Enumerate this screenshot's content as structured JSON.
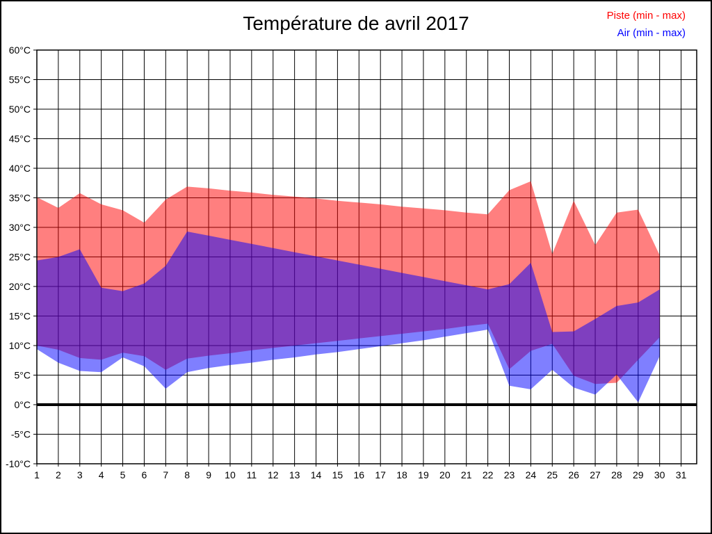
{
  "page": {
    "background": "#FFFFFF",
    "frame_color": "#000000"
  },
  "chart_data": {
    "type": "area",
    "title": "Température de avril 2017",
    "xlabel": "",
    "ylabel": "",
    "ylim": [
      -10,
      60
    ],
    "xlim": [
      1,
      31
    ],
    "grid": true,
    "grid_color": "#000000",
    "zero_line": true,
    "zero_line_color": "#000000",
    "legend_position": "top-right",
    "x": [
      1,
      2,
      3,
      4,
      5,
      6,
      7,
      8,
      9,
      10,
      11,
      12,
      13,
      14,
      15,
      16,
      17,
      18,
      19,
      20,
      21,
      22,
      23,
      24,
      25,
      26,
      27,
      28,
      29,
      30
    ],
    "x_axis_ticks": [
      {
        "value": 1,
        "label": "1"
      },
      {
        "value": 2,
        "label": "2"
      },
      {
        "value": 3,
        "label": "3"
      },
      {
        "value": 4,
        "label": "4"
      },
      {
        "value": 5,
        "label": "5"
      },
      {
        "value": 6,
        "label": "6"
      },
      {
        "value": 7,
        "label": "7"
      },
      {
        "value": 8,
        "label": "8"
      },
      {
        "value": 9,
        "label": "9"
      },
      {
        "value": 10,
        "label": "10"
      },
      {
        "value": 11,
        "label": "11"
      },
      {
        "value": 12,
        "label": "12"
      },
      {
        "value": 13,
        "label": "13"
      },
      {
        "value": 14,
        "label": "14"
      },
      {
        "value": 15,
        "label": "15"
      },
      {
        "value": 16,
        "label": "16"
      },
      {
        "value": 17,
        "label": "17"
      },
      {
        "value": 18,
        "label": "18"
      },
      {
        "value": 19,
        "label": "19"
      },
      {
        "value": 20,
        "label": "20"
      },
      {
        "value": 21,
        "label": "21"
      },
      {
        "value": 22,
        "label": "22"
      },
      {
        "value": 23,
        "label": "23"
      },
      {
        "value": 24,
        "label": "24"
      },
      {
        "value": 25,
        "label": "25"
      },
      {
        "value": 26,
        "label": "26"
      },
      {
        "value": 27,
        "label": "27"
      },
      {
        "value": 28,
        "label": "28"
      },
      {
        "value": 29,
        "label": "29"
      },
      {
        "value": 30,
        "label": "30"
      },
      {
        "value": 31,
        "label": "31"
      }
    ],
    "y_axis_ticks": [
      {
        "value": 60,
        "label": "60°C"
      },
      {
        "value": 55,
        "label": "55°C"
      },
      {
        "value": 50,
        "label": "50°C"
      },
      {
        "value": 45,
        "label": "45°C"
      },
      {
        "value": 40,
        "label": "40°C"
      },
      {
        "value": 35,
        "label": "35°C"
      },
      {
        "value": 30,
        "label": "30°C"
      },
      {
        "value": 25,
        "label": "25°C"
      },
      {
        "value": 20,
        "label": "20°C"
      },
      {
        "value": 15,
        "label": "15°C"
      },
      {
        "value": 10,
        "label": "10°C"
      },
      {
        "value": 5,
        "label": "5°C"
      },
      {
        "value": 0,
        "label": "0°C"
      },
      {
        "value": -5,
        "label": "-5°C"
      },
      {
        "value": -10,
        "label": "-10°C"
      }
    ],
    "series": [
      {
        "name": "Piste (min - max)",
        "legend_color": "#FF0000",
        "fill": "rgba(255,0,0,0.5)",
        "max": [
          35.1,
          33.3,
          35.8,
          33.9,
          32.9,
          30.8,
          34.7,
          36.9,
          36.6,
          36.2,
          35.9,
          35.5,
          35.2,
          34.9,
          34.5,
          34.2,
          33.9,
          33.5,
          33.2,
          32.9,
          32.5,
          32.2,
          36.3,
          37.8,
          25.5,
          34.5,
          27.0,
          32.5,
          33.0,
          25.3
        ],
        "min": [
          10.0,
          9.3,
          7.9,
          7.6,
          8.8,
          8.2,
          5.9,
          7.8,
          8.3,
          8.7,
          9.2,
          9.6,
          10.0,
          10.4,
          10.8,
          11.2,
          11.6,
          12.0,
          12.4,
          12.8,
          13.3,
          13.7,
          6.0,
          9.1,
          10.3,
          4.9,
          3.5,
          3.7,
          7.6,
          11.4
        ]
      },
      {
        "name": "Air (min - max)",
        "legend_color": "#0000FF",
        "fill": "rgba(0,0,255,0.5)",
        "max": [
          24.4,
          25.0,
          26.3,
          19.8,
          19.2,
          20.5,
          23.5,
          29.3,
          28.6,
          27.9,
          27.2,
          26.5,
          25.8,
          25.1,
          24.4,
          23.7,
          23.0,
          22.3,
          21.6,
          20.9,
          20.2,
          19.5,
          20.4,
          24.0,
          12.3,
          12.4,
          14.5,
          16.7,
          17.3,
          19.5
        ],
        "min": [
          9.4,
          7.1,
          5.7,
          5.5,
          8.0,
          6.5,
          2.7,
          5.5,
          6.2,
          6.7,
          7.1,
          7.6,
          8.0,
          8.5,
          8.9,
          9.4,
          9.9,
          10.4,
          10.9,
          11.5,
          12.1,
          12.7,
          3.2,
          2.6,
          5.9,
          2.9,
          1.7,
          5.1,
          0.4,
          8.2
        ]
      }
    ]
  }
}
